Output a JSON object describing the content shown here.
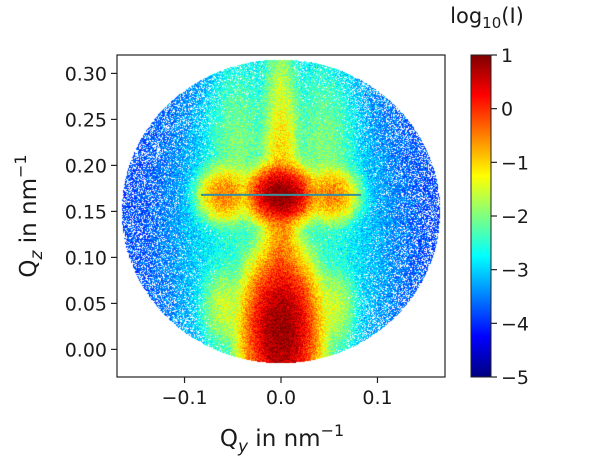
{
  "chart_data": {
    "type": "heatmap",
    "title": "",
    "xlabel": {
      "base": "Q",
      "sub": "y",
      "suffix": " in nm",
      "sup": "−1"
    },
    "ylabel": {
      "base": "Q",
      "sub": "z",
      "suffix": " in nm",
      "sup": "−1"
    },
    "xlim": [
      -0.17,
      0.17
    ],
    "ylim": [
      -0.03,
      0.32
    ],
    "xticks": [
      {
        "value": -0.1,
        "label": "−0.1"
      },
      {
        "value": 0.0,
        "label": "0.0"
      },
      {
        "value": 0.1,
        "label": "0.1"
      }
    ],
    "yticks": [
      {
        "value": 0.0,
        "label": "0.00"
      },
      {
        "value": 0.05,
        "label": "0.05"
      },
      {
        "value": 0.1,
        "label": "0.10"
      },
      {
        "value": 0.15,
        "label": "0.15"
      },
      {
        "value": 0.2,
        "label": "0.20"
      },
      {
        "value": 0.25,
        "label": "0.25"
      },
      {
        "value": 0.3,
        "label": "0.30"
      }
    ],
    "colorbar": {
      "title_base": "log",
      "title_sub": "10",
      "title_suffix": "(I)",
      "range": [
        -5,
        1
      ],
      "colormap": "jet",
      "ticks": [
        {
          "value": 1,
          "label": "1"
        },
        {
          "value": 0,
          "label": "0"
        },
        {
          "value": -1,
          "label": "−1"
        },
        {
          "value": -2,
          "label": "−2"
        },
        {
          "value": -3,
          "label": "−3"
        },
        {
          "value": -4,
          "label": "−4"
        },
        {
          "value": -5,
          "label": "−5"
        }
      ]
    },
    "detector_mask": {
      "shape": "circle",
      "center_qy": 0.0,
      "center_qz": 0.15,
      "radius_q": 0.165
    },
    "horizon_line_qz": 0.168,
    "background_log_intensity": -3.9,
    "features": [
      {
        "name": "specular-peak-upper",
        "qy": 0.0,
        "qz": 0.168,
        "width_qy": 0.012,
        "width_qz": 0.011,
        "log_intensity": 1.0
      },
      {
        "name": "specular-peak-lower",
        "qy": 0.0,
        "qz": 0.02,
        "width_qy": 0.014,
        "width_qz": 0.03,
        "log_intensity": 0.9
      },
      {
        "name": "specular-rod",
        "qy": 0.0,
        "qz": 0.09,
        "width_qy": 0.008,
        "width_qz": 0.09,
        "log_intensity": -0.6
      },
      {
        "name": "yoneda-wing-left",
        "qy": -0.058,
        "qz": 0.168,
        "width_qy": 0.011,
        "width_qz": 0.012,
        "log_intensity": -0.5
      },
      {
        "name": "yoneda-wing-right",
        "qy": 0.052,
        "qz": 0.168,
        "width_qy": 0.011,
        "width_qz": 0.012,
        "log_intensity": -0.5
      },
      {
        "name": "side-rod-left-upper",
        "qy": -0.045,
        "qz": 0.22,
        "width_qy": 0.015,
        "width_qz": 0.045,
        "log_intensity": -2.1
      },
      {
        "name": "side-rod-right-upper",
        "qy": 0.045,
        "qz": 0.22,
        "width_qy": 0.015,
        "width_qz": 0.045,
        "log_intensity": -2.1
      },
      {
        "name": "side-rod-left-lower",
        "qy": -0.06,
        "qz": 0.045,
        "width_qy": 0.01,
        "width_qz": 0.02,
        "log_intensity": -1.6
      },
      {
        "name": "side-rod-right-lower",
        "qy": 0.055,
        "qz": 0.045,
        "width_qy": 0.01,
        "width_qz": 0.02,
        "log_intensity": -1.6
      },
      {
        "name": "central-glow",
        "qy": 0.0,
        "qz": 0.12,
        "width_qy": 0.05,
        "width_qz": 0.12,
        "log_intensity": -2.4
      }
    ]
  }
}
